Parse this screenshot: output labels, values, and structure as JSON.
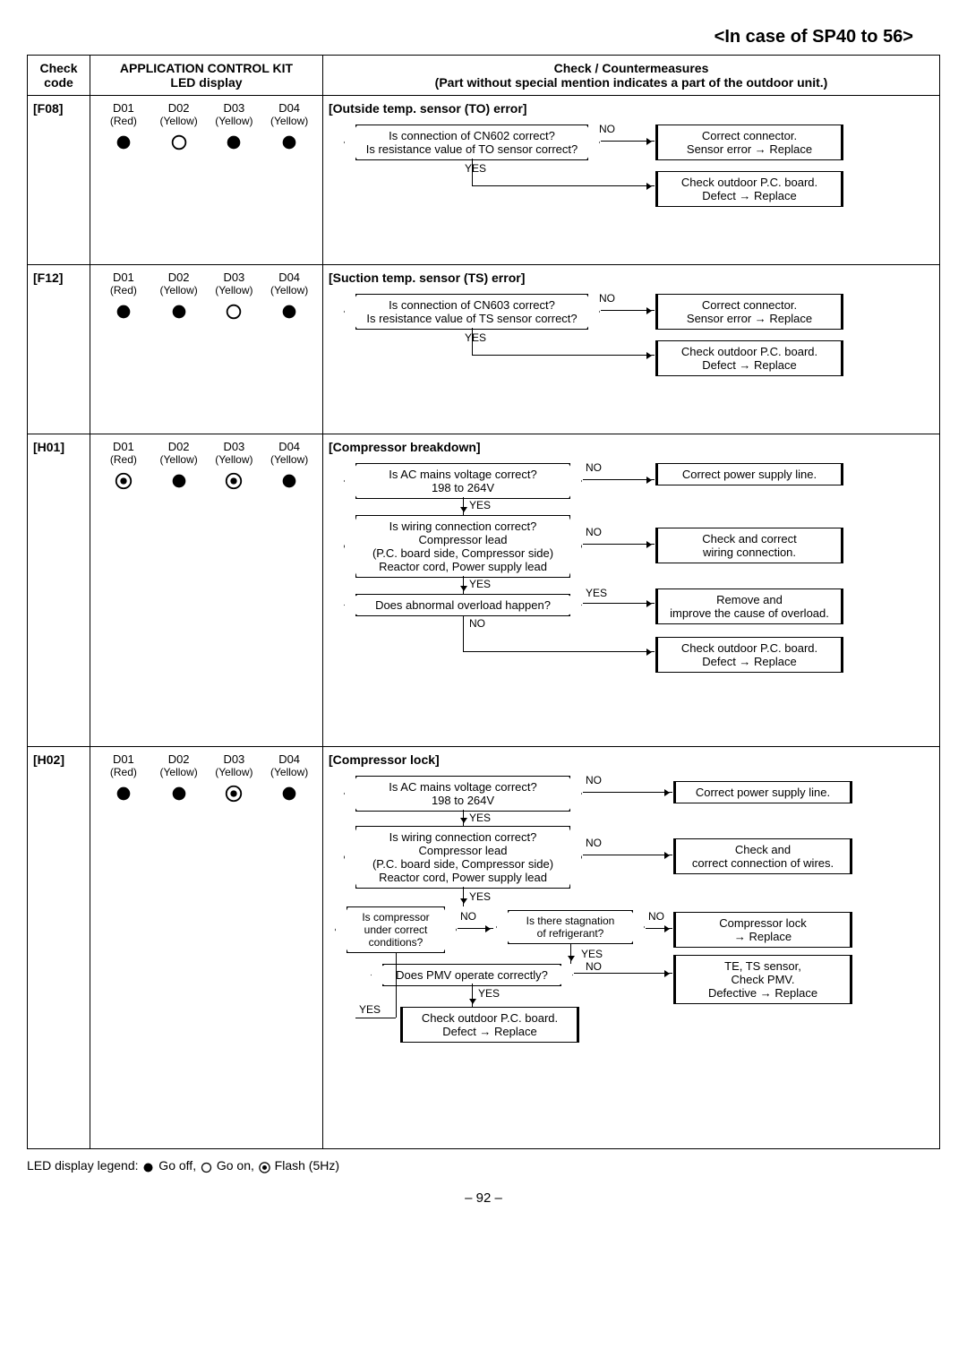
{
  "title": "<In case of SP40 to 56>",
  "header": {
    "code": "Check code",
    "led": "APPLICATION CONTROL KIT\nLED display",
    "cm_line1": "Check / Countermeasures",
    "cm_line2": "(Part without special mention indicates a part of the outdoor unit.)"
  },
  "led_labels": [
    "D01",
    "D02",
    "D03",
    "D04"
  ],
  "led_colors": [
    "(Red)",
    "(Yellow)",
    "(Yellow)",
    "(Yellow)"
  ],
  "rows": {
    "f08": {
      "code": "[F08]",
      "leds": [
        "off",
        "on",
        "off",
        "off"
      ],
      "title": "[Outside temp. sensor (TO) error]",
      "q1": "Is connection of CN602 correct?\nIs resistance value of TO sensor correct?",
      "r1": "Correct connector.\nSensor error → Replace",
      "r2": "Check outdoor P.C. board.\nDefect → Replace",
      "no": "NO",
      "yes": "YES"
    },
    "f12": {
      "code": "[F12]",
      "leds": [
        "off",
        "off",
        "on",
        "off"
      ],
      "title": "[Suction temp. sensor (TS) error]",
      "q1": "Is connection of CN603 correct?\nIs resistance value of TS sensor correct?",
      "r1": "Correct connector.\nSensor error → Replace",
      "r2": "Check outdoor P.C. board.\nDefect → Replace",
      "no": "NO",
      "yes": "YES"
    },
    "h01": {
      "code": "[H01]",
      "leds": [
        "flash",
        "off",
        "flash",
        "off"
      ],
      "title": "[Compressor breakdown]",
      "q1": "Is AC mains voltage correct?\n198 to 264V",
      "r1": "Correct power supply line.",
      "q2": "Is wiring connection correct?\nCompressor lead\n(P.C. board side, Compressor side)\nReactor cord, Power supply lead",
      "r2": "Check and correct\nwiring connection.",
      "q3": "Does abnormal overload happen?",
      "r3": "Remove and\nimprove the cause of overload.",
      "r4": "Check outdoor P.C. board.\nDefect → Replace",
      "no": "NO",
      "yes": "YES"
    },
    "h02": {
      "code": "[H02]",
      "leds": [
        "off",
        "off",
        "flash",
        "off"
      ],
      "title": "[Compressor lock]",
      "q1": "Is AC mains voltage correct?\n198 to 264V",
      "r1": "Correct power supply line.",
      "q2": "Is wiring connection correct?\nCompressor lead\n(P.C. board side, Compressor side)\nReactor cord, Power supply lead",
      "r2": "Check and\ncorrect connection of wires.",
      "q3": "Is compressor\nunder correct\nconditions?",
      "q4": "Is there stagnation\nof refrigerant?",
      "r3": "Compressor lock\n→ Replace",
      "q5": "Does PMV operate correctly?",
      "r4": "TE, TS sensor,\nCheck PMV.\nDefective → Replace",
      "r5": "Check outdoor P.C. board.\nDefect → Replace",
      "no": "NO",
      "yes": "YES"
    }
  },
  "legend": "LED display legend: ● Go off, ○ Go on, ◎ Flash (5Hz)",
  "legend_prefix": "LED display legend: ",
  "legend_off": " Go off, ",
  "legend_on": " Go on, ",
  "legend_flash": " Flash (5Hz)",
  "pagenum": "– 92 –"
}
